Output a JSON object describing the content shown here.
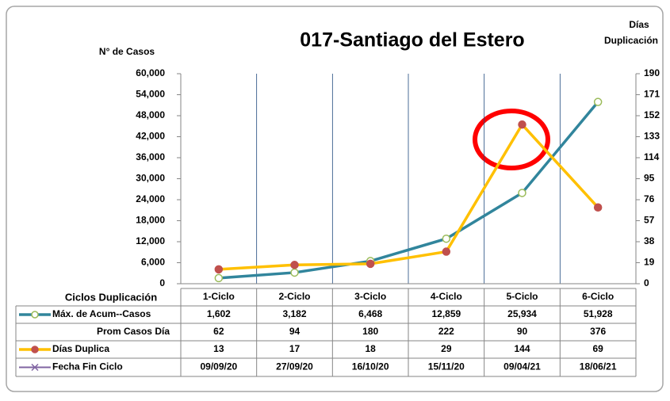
{
  "chart_data": {
    "type": "line",
    "title": "017-Santiago del Estero",
    "y_label": "N° de Casos",
    "y2_label": [
      "Días",
      "Duplicación"
    ],
    "category_label": "Ciclos Duplicación",
    "categories": [
      "1-Ciclo",
      "2-Ciclo",
      "3-Ciclo",
      "4-Ciclo",
      "5-Ciclo",
      "6-Ciclo"
    ],
    "series": [
      {
        "name": "Máx. de Acum--Casos",
        "color": "#31859c",
        "marker_color": "#ffffff",
        "marker_edge": "#9bbb59",
        "values": [
          1602,
          3182,
          6468,
          12859,
          25934,
          51928
        ],
        "value_labels": [
          "1,602",
          "3,182",
          "6,468",
          "12,859",
          "25,934",
          "51,928"
        ]
      },
      {
        "name": "Días Duplica",
        "color": "#ffc000",
        "marker_color": "#c0504d",
        "axis": "y2",
        "values": [
          13,
          17,
          18,
          29,
          144,
          69
        ]
      }
    ],
    "table_rows": [
      {
        "name": "Prom Casos Día",
        "values": [
          62,
          94,
          180,
          222,
          90,
          376
        ]
      },
      {
        "name": "Fecha Fin Ciclo",
        "color": "#8064a2",
        "values": [
          "09/09/20",
          "27/09/20",
          "16/10/20",
          "15/11/20",
          "09/04/21",
          "18/06/21"
        ]
      }
    ],
    "ylim": [
      0,
      60000
    ],
    "yticks": [
      0,
      {
        "value": 6000,
        "label": "6,000"
      },
      {
        "value": 12000,
        "label": "12,000"
      },
      {
        "value": 18000,
        "label": "18,000"
      },
      {
        "value": 24000,
        "label": "24,000"
      },
      {
        "value": 30000,
        "label": "30,000"
      },
      {
        "value": 36000,
        "label": "36,000"
      },
      {
        "value": 42000,
        "label": "42,000"
      },
      {
        "value": 48000,
        "label": "48,000"
      },
      {
        "value": 54000,
        "label": "54,000"
      },
      {
        "value": 60000,
        "label": "60,000"
      }
    ],
    "y2lim": [
      0,
      190
    ],
    "y2ticks": [
      0,
      19,
      38,
      57,
      76,
      95,
      114,
      133,
      152,
      171,
      190
    ],
    "grid": true
  }
}
